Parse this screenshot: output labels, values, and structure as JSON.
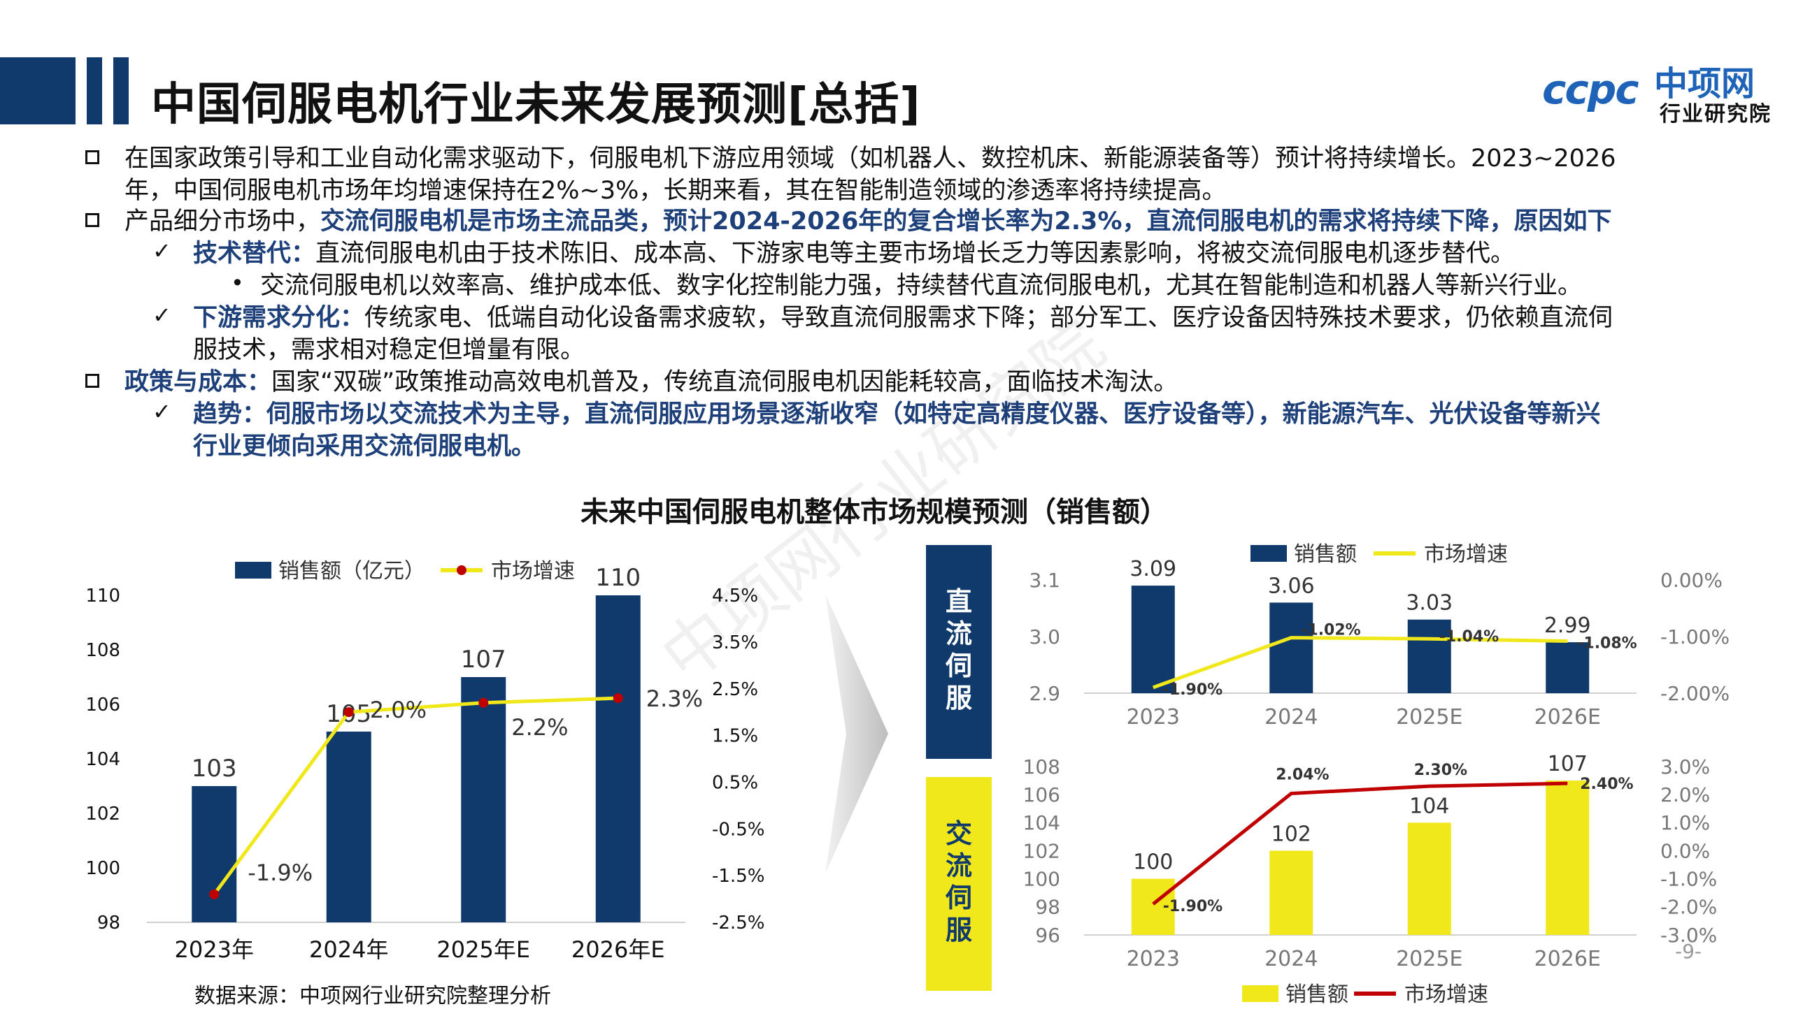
{
  "header": {
    "title": "中国伺服电机行业未来发展预测[总括]",
    "logo_text_en": "ccpc",
    "logo_text_cn": "中项网",
    "logo_subtext": "行业研究院"
  },
  "bullets": {
    "b1_line1": "在国家政策引导和工业自动化需求驱动下，伺服电机下游应用领域（如机器人、数控机床、新能源装备等）预计将持续增长。2023~2026",
    "b1_line2": "年，中国伺服电机市场年均增速保持在2%~3%，长期来看，其在智能制造领域的渗透率将持续提高。",
    "b2_plain": "产品细分市场中，",
    "b2_bold": "交流伺服电机是市场主流品类，预计2024-2026年的复合增长率为2.3%，直流伺服电机的需求将持续下降，原因如下",
    "c1_bold": "技术替代：",
    "c1_text": "直流伺服电机由于技术陈旧、成本高、下游家电等主要市场增长乏力等因素影响，将被交流伺服电机逐步替代。",
    "c1_sub": "交流伺服电机以效率高、维护成本低、数字化控制能力强，持续替代直流伺服电机，尤其在智能制造和机器人等新兴行业。",
    "c2_bold": "下游需求分化：",
    "c2_text_line1": "传统家电、低端自动化设备需求疲软，导致直流伺服需求下降；部分军工、医疗设备因特殊技术要求，仍依赖直流伺",
    "c2_text_line2": "服技术，需求相对稳定但增量有限。",
    "b3_bold": "政策与成本：",
    "b3_text": "国家“双碳”政策推动高效电机普及，传统直流伺服电机因能耗较高，面临技术淘汰。",
    "c3_line1": "趋势：伺服市场以交流技术为主导，直流伺服应用场景逐渐收窄（如特定高精度仪器、医疗设备等），新能源汽车、光伏设备等新兴",
    "c3_line2": "行业更倾向采用交流伺服电机。"
  },
  "center_title": "未来中国伺服电机整体市场规模预测（销售额）",
  "side_labels": {
    "dc": "直流伺服",
    "ac": "交流伺服"
  },
  "source": "数据来源：中项网行业研究院整理分析",
  "page_number": "-9-",
  "watermark": "中项网行业研究院",
  "colors": {
    "navy": "#0f3a6b",
    "yellow": "#f0e81a",
    "red": "#c00000",
    "gray": "#d0d0d0"
  },
  "chart_data": [
    {
      "type": "bar",
      "title": "",
      "categories": [
        "2023年",
        "2024年",
        "2025年E",
        "2026年E"
      ],
      "series": [
        {
          "name": "销售额（亿元）",
          "values": [
            103,
            105,
            107,
            110
          ],
          "labels": [
            "103",
            "105",
            "107",
            "110"
          ],
          "color": "#0f3a6b"
        },
        {
          "name": "市场增速",
          "type": "line",
          "values": [
            -1.9,
            2.0,
            2.2,
            2.3
          ],
          "labels": [
            "-1.9%",
            "2.0%",
            "2.2%",
            "2.3%"
          ],
          "color": "#f0e81a",
          "marker_color": "#c00000",
          "axis": "right"
        }
      ],
      "ylim": [
        98,
        110
      ],
      "yticks": [
        "98",
        "100",
        "102",
        "104",
        "106",
        "108",
        "110"
      ],
      "y2lim": [
        -2.5,
        4.5
      ],
      "y2ticks": [
        "-2.5%",
        "-1.5%",
        "-0.5%",
        "0.5%",
        "1.5%",
        "2.5%",
        "3.5%",
        "4.5%"
      ],
      "legend": "top"
    },
    {
      "type": "bar",
      "title": "直流伺服",
      "categories": [
        "2023",
        "2024",
        "2025E",
        "2026E"
      ],
      "series": [
        {
          "name": "销售额",
          "values": [
            3.09,
            3.06,
            3.03,
            2.99
          ],
          "labels": [
            "3.09",
            "3.06",
            "3.03",
            "2.99"
          ],
          "color": "#0f3a6b"
        },
        {
          "name": "市场增速",
          "type": "line",
          "values": [
            -1.9,
            -1.02,
            -1.04,
            -1.08
          ],
          "labels": [
            "-1.90%",
            "-1.02%",
            "-1.04%",
            "-1.08%"
          ],
          "color": "#f0e81a",
          "axis": "right"
        }
      ],
      "ylim": [
        2.9,
        3.1
      ],
      "yticks": [
        "2.9",
        "3.0",
        "3.1"
      ],
      "y2lim": [
        -2.0,
        0.0
      ],
      "y2ticks": [
        "-2.00%",
        "-1.00%",
        "0.00%"
      ],
      "legend": "top"
    },
    {
      "type": "bar",
      "title": "交流伺服",
      "categories": [
        "2023",
        "2024",
        "2025E",
        "2026E"
      ],
      "series": [
        {
          "name": "销售额",
          "values": [
            100,
            102,
            104,
            107
          ],
          "labels": [
            "100",
            "102",
            "104",
            "107"
          ],
          "color": "#f0e81a"
        },
        {
          "name": "市场增速",
          "type": "line",
          "values": [
            -1.9,
            2.04,
            2.3,
            2.4
          ],
          "labels": [
            "-1.90%",
            "2.04%",
            "2.30%",
            "2.40%"
          ],
          "color": "#c00000",
          "axis": "right"
        }
      ],
      "ylim": [
        96,
        108
      ],
      "yticks": [
        "96",
        "98",
        "100",
        "102",
        "104",
        "106",
        "108"
      ],
      "y2lim": [
        -3.0,
        3.0
      ],
      "y2ticks": [
        "-3.0%",
        "-2.0%",
        "-1.0%",
        "0.0%",
        "1.0%",
        "2.0%",
        "3.0%"
      ],
      "legend": "bottom"
    }
  ]
}
